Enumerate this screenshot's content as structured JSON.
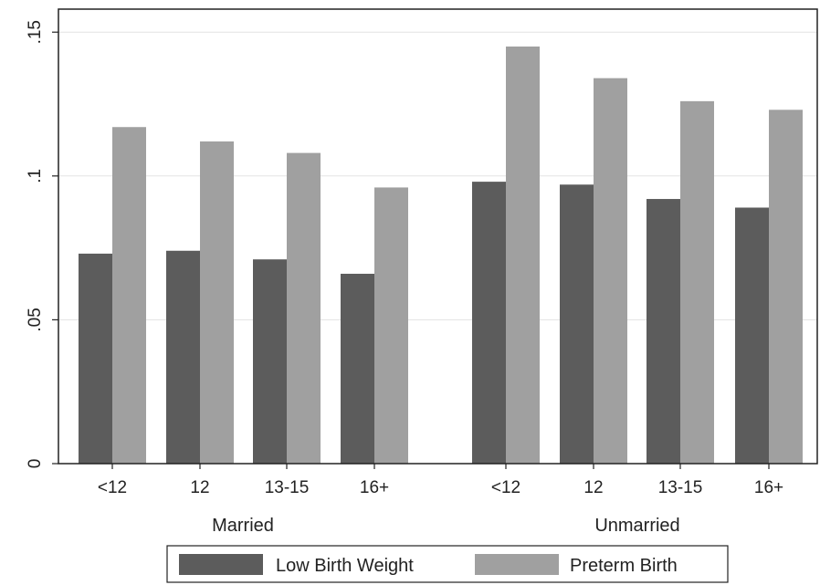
{
  "chart_data": {
    "type": "bar",
    "groups": [
      {
        "label": "Married",
        "categories": [
          "<12",
          "12",
          "13-15",
          "16+"
        ]
      },
      {
        "label": "Unmarried",
        "categories": [
          "<12",
          "12",
          "13-15",
          "16+"
        ]
      }
    ],
    "series": [
      {
        "name": "Low Birth Weight",
        "color": "#5c5c5c",
        "values": [
          0.073,
          0.074,
          0.071,
          0.066,
          0.098,
          0.097,
          0.092,
          0.089
        ]
      },
      {
        "name": "Preterm Birth",
        "color": "#a0a0a0",
        "values": [
          0.117,
          0.112,
          0.108,
          0.096,
          0.145,
          0.134,
          0.126,
          0.123
        ]
      }
    ],
    "ylim": [
      0,
      0.158
    ],
    "yticks": [
      {
        "value": 0,
        "label": "0"
      },
      {
        "value": 0.05,
        "label": ".05"
      },
      {
        "value": 0.1,
        "label": ".1"
      },
      {
        "value": 0.15,
        "label": ".15"
      }
    ],
    "xlabel": "",
    "ylabel": "",
    "grid": true,
    "legend_position": "bottom"
  }
}
